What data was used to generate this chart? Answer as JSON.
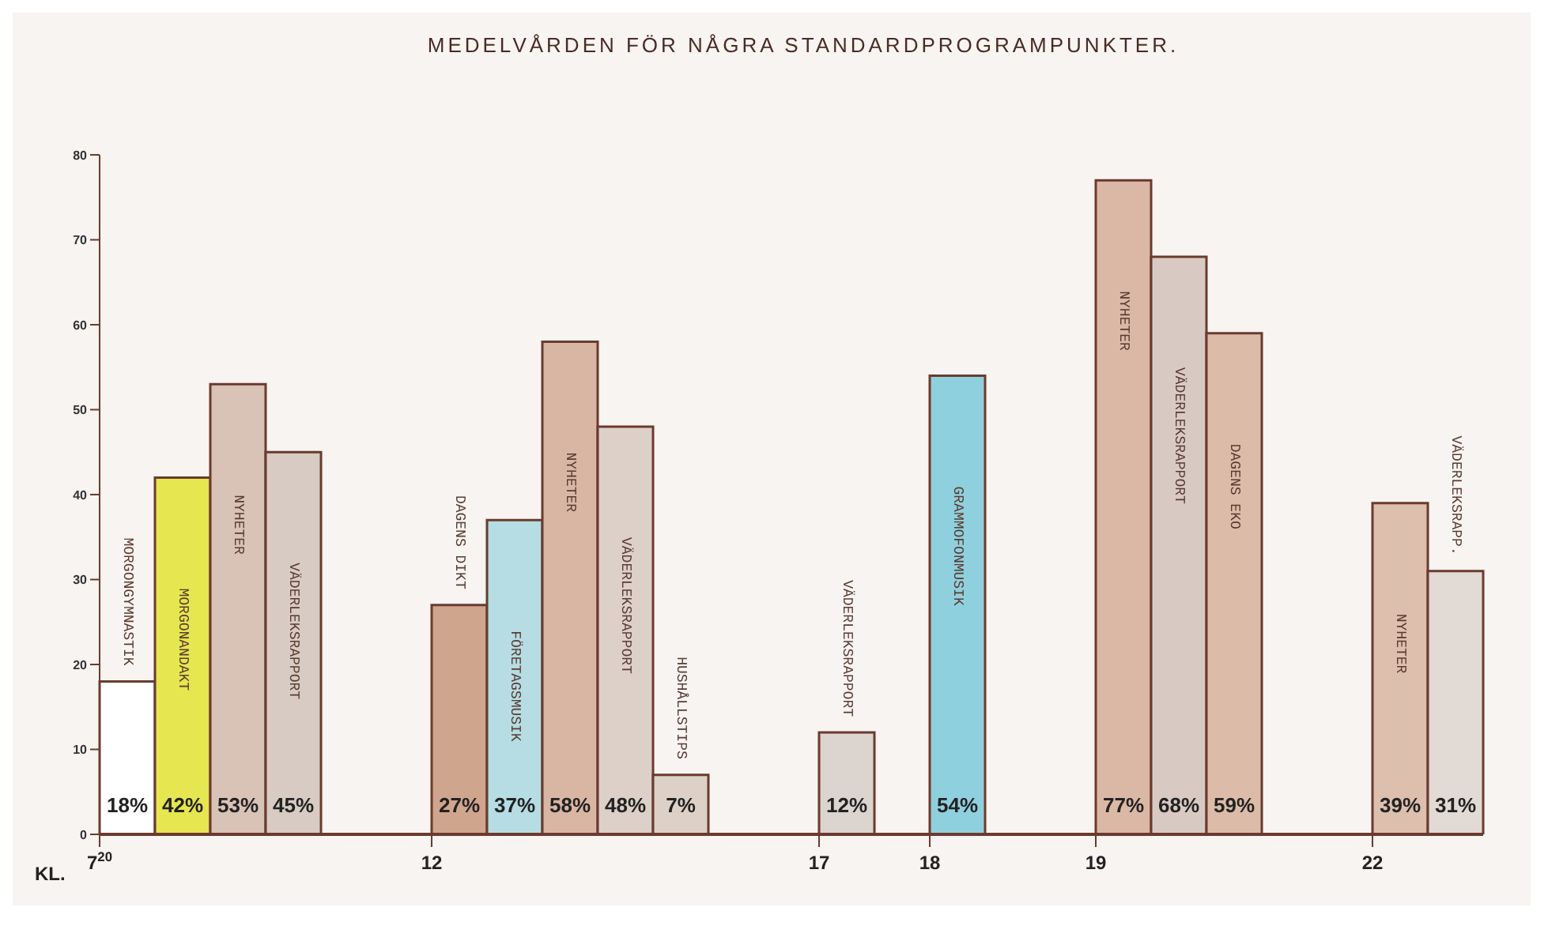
{
  "chart_data": {
    "type": "bar",
    "title": "MEDELVÅRDEN FÖR NÅGRA STANDARDPROGRAMPUNKTER.",
    "xlabel": "KL.",
    "categories": [
      "7$^{20}$",
      null,
      null,
      null,
      null,
      null,
      "12",
      null,
      null,
      null,
      null,
      null,
      null,
      "17",
      null,
      "18",
      null,
      null,
      "19",
      null,
      null,
      null,
      null,
      "22",
      null
    ],
    "values": [
      18,
      42,
      53,
      45,
      null,
      null,
      27,
      37,
      58,
      48,
      7,
      null,
      null,
      12,
      null,
      54,
      null,
      null,
      77,
      68,
      59,
      null,
      null,
      39,
      31
    ],
    "value_labels": [
      "18%",
      "42%",
      "53%",
      "45%",
      null,
      null,
      "27%",
      "37%",
      "58%",
      "48%",
      "7%",
      null,
      null,
      "12%",
      null,
      "54%",
      null,
      null,
      "77%",
      "68%",
      "59%",
      null,
      null,
      "39%",
      "31%"
    ],
    "colors": [
      "#ffffff",
      "#e6e650",
      "#d9c2b6",
      "#d7cbc3",
      null,
      null,
      "#cfa58e",
      "#b5dde3",
      "#d9b6a4",
      "#dcd0c8",
      "#ddd0c6",
      null,
      null,
      "#dcd4ce",
      null,
      "#8fd0de",
      null,
      null,
      "#dbb8a6",
      "#d8cac2",
      "#dcbca8",
      null,
      null,
      "#ddbfae",
      "#e2dad4"
    ],
    "annotations": [
      "MORGONGYMNASTIK",
      "MORGONANDAKT",
      "NYHETER",
      "VÄDERLEKSRAPPORT",
      "DAGENS DIKT",
      "FÖRETAGSMUSIK",
      "NYHETER",
      "VÄDERLEKSRAPPORT",
      "HUSHÅLLSTIPS",
      "VÄDERLEKSRAPPORT",
      "GRAMMOFONMUSIK",
      "NYHETER",
      "VÄDERLEKSRAPPORT",
      "DAGENS EKO",
      "NYHETER",
      "VÄDERLEKSRAPP."
    ],
    "ylim": [
      0,
      80
    ],
    "yticks": [
      0,
      10,
      20,
      30,
      40,
      50,
      60,
      70,
      80
    ]
  }
}
